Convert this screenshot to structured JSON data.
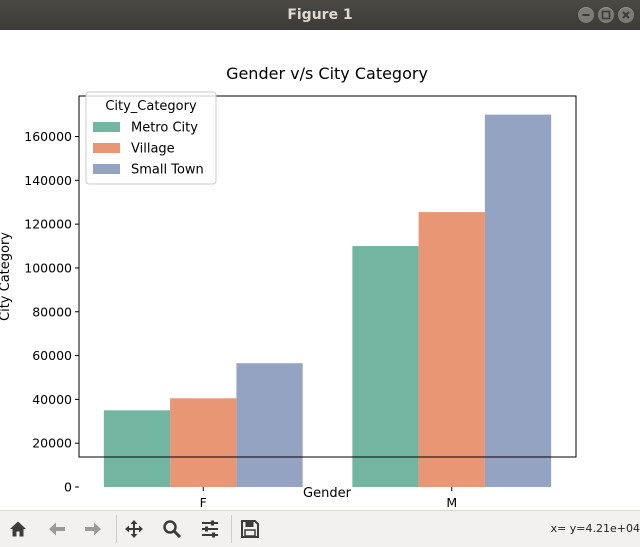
{
  "window": {
    "title": "Figure 1"
  },
  "toolbar": {
    "buttons": [
      {
        "name": "home-button",
        "icon": "home-icon"
      },
      {
        "name": "back-button",
        "icon": "arrow-left-icon"
      },
      {
        "name": "forward-button",
        "icon": "arrow-right-icon"
      },
      {
        "name": "pan-button",
        "icon": "move-icon"
      },
      {
        "name": "zoom-button",
        "icon": "magnifier-icon"
      },
      {
        "name": "configure-subplots-button",
        "icon": "sliders-icon"
      },
      {
        "name": "save-button",
        "icon": "floppy-disk-icon"
      }
    ],
    "status": "x= y=4.21e+04"
  },
  "chart_data": {
    "type": "bar",
    "title": "Gender v/s City Category",
    "xlabel": "Gender",
    "ylabel": "City Category",
    "categories": [
      "F",
      "M"
    ],
    "series": [
      {
        "name": "Metro City",
        "values": [
          35000,
          110000
        ],
        "color": "#72b6a1"
      },
      {
        "name": "Village",
        "values": [
          40500,
          125500
        ],
        "color": "#e99675"
      },
      {
        "name": "Small Town",
        "values": [
          56500,
          170000
        ],
        "color": "#95a3c3"
      }
    ],
    "ylim": [
      0,
      178500
    ],
    "yticks": [
      0,
      20000,
      40000,
      60000,
      80000,
      100000,
      120000,
      140000,
      160000
    ],
    "ytick_labels": [
      "0",
      "20000",
      "40000",
      "60000",
      "80000",
      "100000",
      "120000",
      "140000",
      "160000"
    ],
    "legend": {
      "title": "City_Category",
      "placement": "top-left"
    },
    "grid": false
  }
}
